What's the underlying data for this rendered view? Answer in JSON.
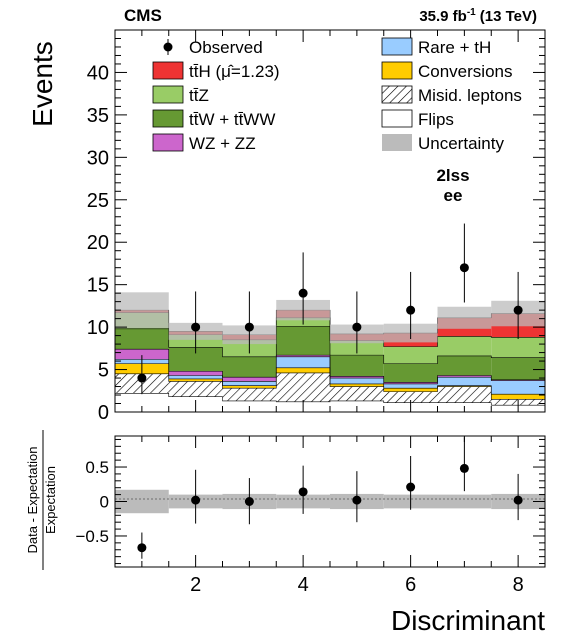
{
  "header": {
    "experiment": "CMS",
    "luminosity": "35.9 fb",
    "luminosity_sup": "-1",
    "energy": "(13 TeV)"
  },
  "category": {
    "line1": "2lss",
    "line2": "ee"
  },
  "chart_data": [
    {
      "type": "stacked-histogram",
      "ylabel": "Events",
      "xlim": [
        0.5,
        8.5
      ],
      "ylim": [
        0,
        45
      ],
      "y_ticks": [
        0,
        5,
        10,
        15,
        20,
        25,
        30,
        35,
        40
      ],
      "bins": [
        1,
        2,
        3,
        4,
        5,
        6,
        7,
        8
      ],
      "stack": [
        {
          "key": "flips",
          "name": "Flips",
          "color": "#ffffff",
          "values": [
            2.2,
            1.8,
            1.3,
            1.2,
            1.3,
            1.1,
            1.1,
            0.8
          ]
        },
        {
          "key": "misid",
          "name": "Misid. leptons",
          "color": "hatch",
          "values": [
            2.3,
            1.8,
            1.5,
            3.4,
            1.7,
            1.3,
            1.9,
            0.7
          ]
        },
        {
          "key": "conv",
          "name": "Conversions",
          "color": "#ffcc00",
          "values": [
            1.2,
            0.3,
            0.3,
            0.6,
            0.3,
            0.4,
            0.1,
            0.6
          ]
        },
        {
          "key": "rare",
          "name": "Rare + tH",
          "color": "#99ccff",
          "values": [
            0.5,
            0.4,
            0.5,
            1.3,
            0.7,
            0.5,
            1.0,
            1.6
          ]
        },
        {
          "key": "wz",
          "name": "WZ + ZZ",
          "color": "#cc66cc",
          "values": [
            1.2,
            0.5,
            0.5,
            0.2,
            0.2,
            0.2,
            0.2,
            0.1
          ]
        },
        {
          "key": "ttw",
          "name": "tt̄W + tt̄WW",
          "color": "#669933",
          "values": [
            2.4,
            2.8,
            2.4,
            3.4,
            2.5,
            2.2,
            2.3,
            2.6
          ]
        },
        {
          "key": "ttz",
          "name": "tt̄Z",
          "color": "#99cc66",
          "values": [
            1.9,
            1.5,
            2.0,
            1.0,
            1.7,
            2.0,
            2.3,
            2.4
          ]
        },
        {
          "key": "tth",
          "name": "tt̄H (μ̂=1.23)",
          "color": "#ee3333",
          "values": [
            0.3,
            0.4,
            0.6,
            0.9,
            0.8,
            1.6,
            2.2,
            2.8
          ]
        }
      ],
      "observed": {
        "name": "Observed",
        "values": [
          4,
          10,
          10,
          14,
          10,
          12,
          17,
          12
        ],
        "err_up": [
          2.7,
          4.2,
          4.2,
          4.8,
          4.2,
          4.5,
          5.2,
          4.5
        ],
        "err_down": [
          1.9,
          3.1,
          3.1,
          3.7,
          3.1,
          3.4,
          4.1,
          3.4
        ]
      },
      "uncertainty": {
        "name": "Uncertainty",
        "color": "#bbbbbb",
        "values": [
          2.1,
          1.0,
          1.1,
          1.2,
          1.1,
          1.1,
          1.3,
          1.5
        ]
      }
    },
    {
      "type": "scatter",
      "xlabel": "Discriminant",
      "ylabel_numerator": "Data - Expectation",
      "ylabel_denominator": "Expectation",
      "xlim": [
        0.5,
        8.5
      ],
      "ylim": [
        -0.95,
        0.95
      ],
      "x_ticks": [
        2,
        4,
        6,
        8
      ],
      "y_ticks": [
        -0.5,
        0,
        0.5
      ],
      "y_tick_labels": [
        "−0.5",
        "0",
        "0.5"
      ],
      "x": [
        1,
        2,
        3,
        4,
        5,
        6,
        7,
        8
      ],
      "values": [
        -0.67,
        0.02,
        0.0,
        0.14,
        0.02,
        0.21,
        0.48,
        0.02
      ],
      "err_up": [
        0.22,
        0.44,
        0.34,
        0.38,
        0.42,
        0.45,
        0.45,
        0.38
      ],
      "err_down": [
        0.16,
        0.34,
        0.33,
        0.32,
        0.32,
        0.33,
        0.33,
        0.29
      ],
      "band": [
        0.17,
        0.1,
        0.11,
        0.1,
        0.11,
        0.1,
        0.1,
        0.11
      ]
    }
  ]
}
